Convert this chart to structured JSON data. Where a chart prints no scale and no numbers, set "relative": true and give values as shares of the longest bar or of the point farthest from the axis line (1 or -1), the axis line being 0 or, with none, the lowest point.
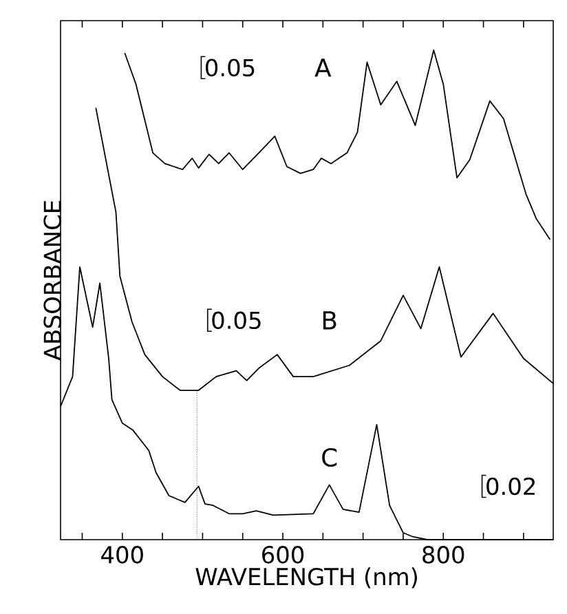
{
  "chart_data": {
    "type": "line",
    "relative": true,
    "xlabel": "WAVELENGTH (nm)",
    "ylabel": "ABSORBANCE",
    "xlim": [
      323,
      937
    ],
    "xticks": [
      {
        "value": 350,
        "label": null
      },
      400,
      {
        "value": 450,
        "label": null
      },
      {
        "value": 500,
        "label": null
      },
      {
        "value": 550,
        "label": null
      },
      600,
      {
        "value": 650,
        "label": null
      },
      {
        "value": 700,
        "label": null
      },
      {
        "value": 750,
        "label": null
      },
      800,
      {
        "value": 850,
        "label": null
      },
      {
        "value": 900,
        "label": null
      }
    ],
    "tick_labels": "x",
    "grid": false,
    "marker": "none",
    "line_style": "solid",
    "series": [
      {
        "name": "A",
        "color": "#000000",
        "x": [
          403,
          417,
          438,
          453,
          475,
          487,
          495,
          508,
          520,
          533,
          550,
          572,
          590,
          605,
          622,
          638,
          648,
          660,
          680,
          693,
          705,
          722,
          742,
          765,
          788,
          800,
          817,
          833,
          858,
          875,
          903,
          916,
          933
        ],
        "values": [
          0.994,
          0.93,
          0.79,
          0.768,
          0.756,
          0.779,
          0.759,
          0.787,
          0.768,
          0.79,
          0.756,
          0.793,
          0.824,
          0.762,
          0.748,
          0.756,
          0.779,
          0.768,
          0.79,
          0.832,
          0.975,
          0.888,
          0.936,
          0.846,
          1.0,
          0.93,
          0.739,
          0.776,
          0.896,
          0.86,
          0.706,
          0.655,
          0.613
        ]
      },
      {
        "name": "B",
        "color": "#000000",
        "x": [
          367,
          392,
          397,
          412,
          428,
          450,
          472,
          495,
          517,
          542,
          555,
          570,
          593,
          613,
          638,
          683,
          722,
          750,
          772,
          795,
          822,
          862,
          900,
          937
        ],
        "values": [
          0.882,
          0.669,
          0.538,
          0.445,
          0.378,
          0.333,
          0.305,
          0.305,
          0.333,
          0.345,
          0.325,
          0.35,
          0.378,
          0.333,
          0.333,
          0.356,
          0.406,
          0.499,
          0.431,
          0.557,
          0.373,
          0.462,
          0.37,
          0.319
        ]
      },
      {
        "name": "C",
        "color": "#000000",
        "x": [
          323,
          338,
          347,
          363,
          372,
          383,
          387,
          400,
          413,
          433,
          442,
          458,
          478,
          495,
          503,
          513,
          533,
          550,
          567,
          588,
          638,
          658,
          675,
          695,
          717,
          733,
          750,
          762,
          780,
          937
        ],
        "values": [
          0.272,
          0.333,
          0.557,
          0.434,
          0.524,
          0.37,
          0.286,
          0.238,
          0.224,
          0.182,
          0.137,
          0.09,
          0.076,
          0.109,
          0.073,
          0.07,
          0.053,
          0.053,
          0.059,
          0.05,
          0.053,
          0.112,
          0.062,
          0.056,
          0.235,
          0.07,
          0.014,
          0.006,
          0.0,
          0.0
        ]
      }
    ],
    "ref_lines": [
      {
        "axis": "x",
        "value": 493,
        "line_style": "dotted",
        "color": "#000000"
      }
    ],
    "annotations": [
      "0.05",
      "0.05",
      "0.02"
    ]
  }
}
